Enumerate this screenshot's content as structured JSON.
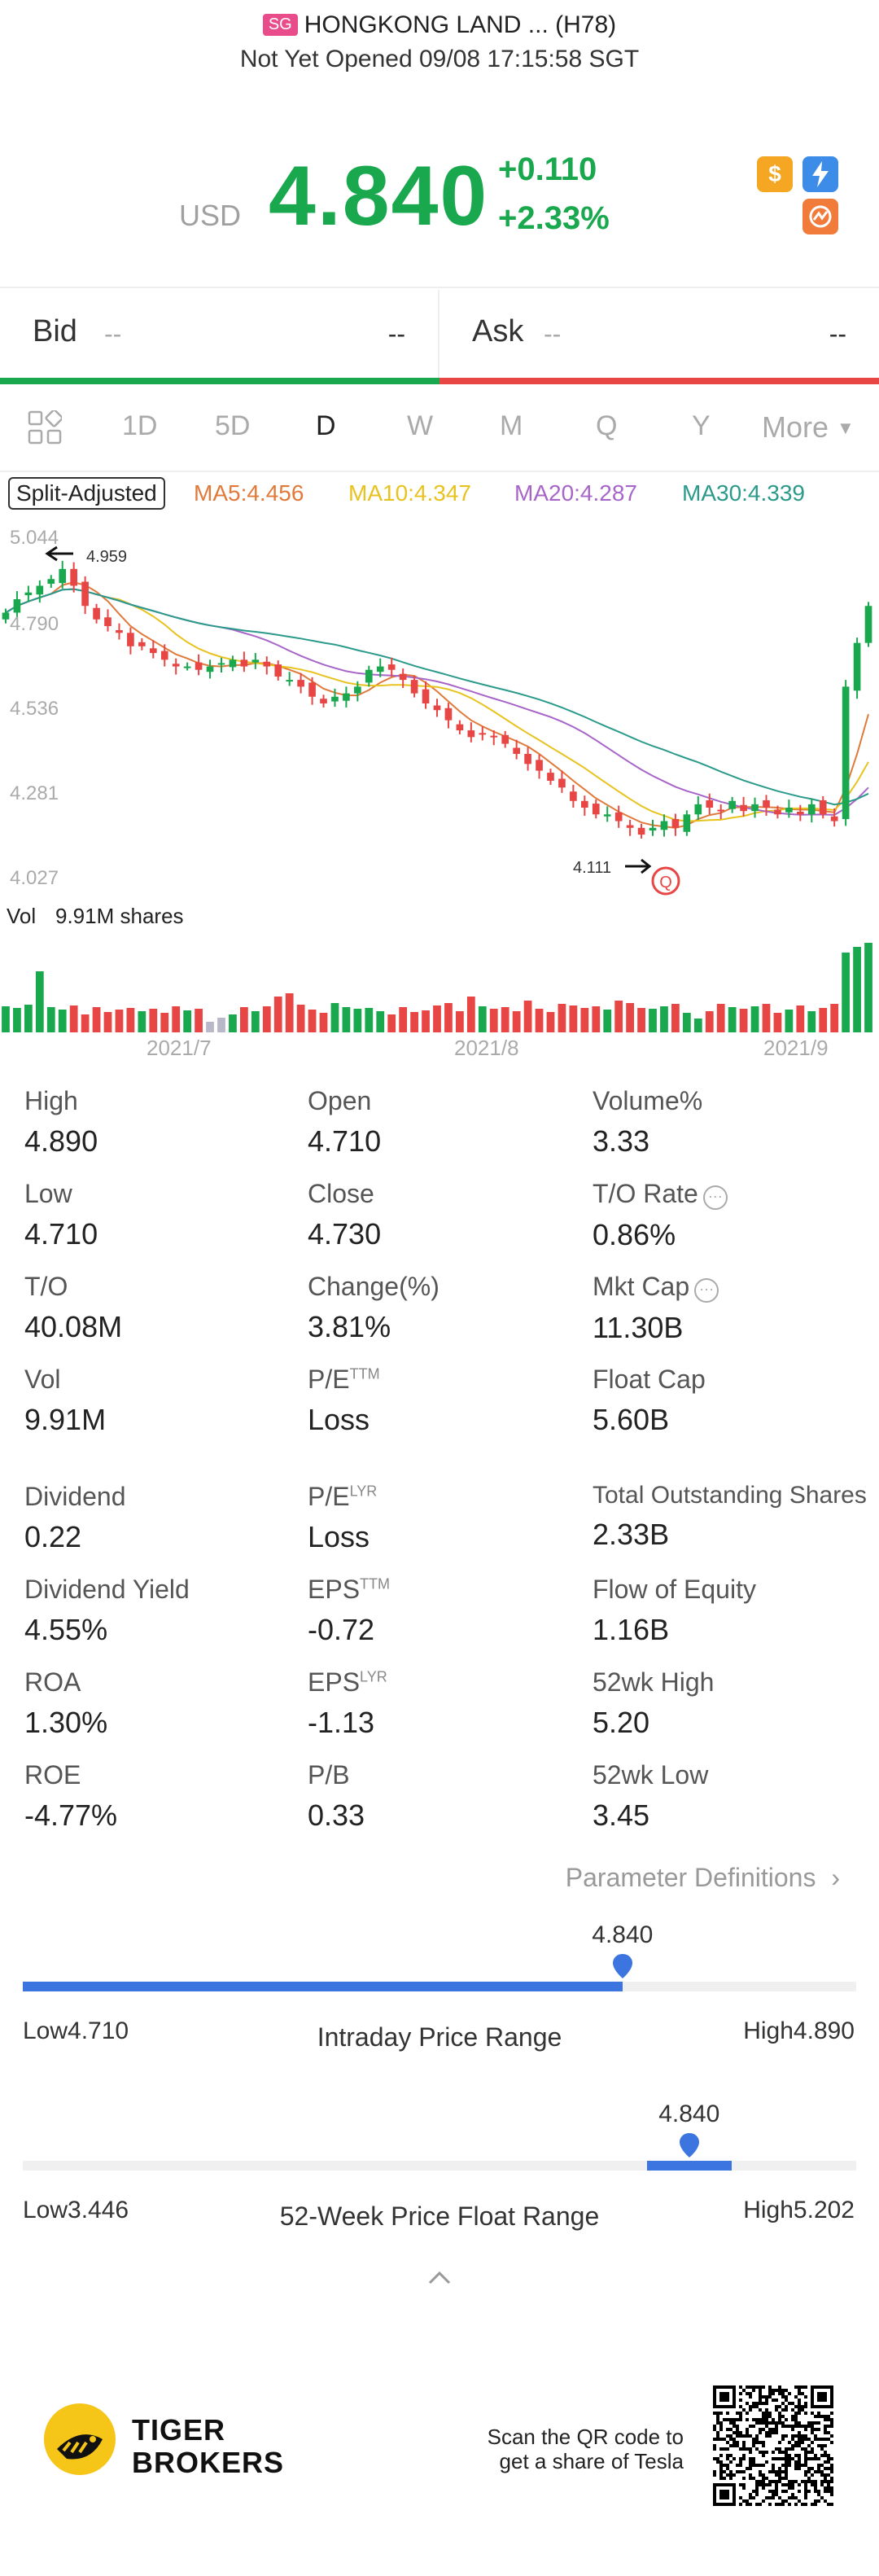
{
  "header": {
    "market_badge": "SG",
    "title": "HONGKONG LAND ... (H78)",
    "status": "Not Yet Opened 09/08 17:15:58 SGT"
  },
  "quote": {
    "currency": "USD",
    "price": "4.840",
    "change": "+0.110",
    "change_pct": "+2.33%",
    "color_up": "#1aa84f",
    "icons": [
      "dollar-icon",
      "flash-order-icon",
      "options-icon"
    ]
  },
  "bidask": {
    "bid_label": "Bid",
    "bid_price": "--",
    "bid_size": "--",
    "ask_label": "Ask",
    "ask_price": "--",
    "ask_size": "--"
  },
  "tabs": {
    "items": [
      "1D",
      "5D",
      "D",
      "W",
      "M",
      "Q",
      "Y"
    ],
    "active": "D",
    "more": "More"
  },
  "ma": {
    "split": "Split-Adjusted",
    "ma5": "MA5:4.456",
    "ma10": "MA10:4.347",
    "ma20": "MA20:4.287",
    "ma30": "MA30:4.339",
    "colors": {
      "ma5": "#e07a3a",
      "ma10": "#e8c21e",
      "ma20": "#a865c9",
      "ma30": "#2a9a8a"
    }
  },
  "chart_data": {
    "type": "candlestick",
    "y_ticks": [
      "5.044",
      "4.790",
      "4.536",
      "4.281",
      "4.027"
    ],
    "ylim": [
      4.027,
      5.044
    ],
    "annotations": {
      "high_mark": "4.959",
      "low_mark": "4.111",
      "low_badge": "Q"
    },
    "volume_label": "Vol",
    "volume_value": "9.91M shares",
    "x_ticks": [
      "2021/7",
      "2021/8",
      "2021/9"
    ],
    "closes": [
      4.82,
      4.86,
      4.88,
      4.9,
      4.92,
      4.95,
      4.9,
      4.84,
      4.8,
      4.78,
      4.76,
      4.72,
      4.72,
      4.7,
      4.68,
      4.66,
      4.66,
      4.65,
      4.66,
      4.67,
      4.68,
      4.66,
      4.68,
      4.66,
      4.63,
      4.62,
      4.6,
      4.57,
      4.55,
      4.57,
      4.58,
      4.6,
      4.65,
      4.66,
      4.65,
      4.62,
      4.58,
      4.55,
      4.53,
      4.5,
      4.47,
      4.45,
      4.46,
      4.45,
      4.43,
      4.4,
      4.37,
      4.35,
      4.32,
      4.3,
      4.26,
      4.24,
      4.22,
      4.22,
      4.2,
      4.18,
      4.16,
      4.18,
      4.2,
      4.18,
      4.22,
      4.25,
      4.24,
      4.23,
      4.26,
      4.23,
      4.25,
      4.24,
      4.22,
      4.24,
      4.22,
      4.25,
      4.22,
      4.2,
      4.6,
      4.73,
      4.84
    ],
    "volumes": [
      3.2,
      3.0,
      3.4,
      7.5,
      3.1,
      2.8,
      3.3,
      2.2,
      3.1,
      2.5,
      2.8,
      3.0,
      2.6,
      2.9,
      2.4,
      3.2,
      2.7,
      2.9,
      1.3,
      1.8,
      2.2,
      3.1,
      2.6,
      3.2,
      4.4,
      4.8,
      3.4,
      2.8,
      2.4,
      3.6,
      3.1,
      2.9,
      3.0,
      2.6,
      2.2,
      3.1,
      2.5,
      2.7,
      3.3,
      3.6,
      2.6,
      4.4,
      3.2,
      2.9,
      3.1,
      2.6,
      3.9,
      2.9,
      2.5,
      3.5,
      3.3,
      3.0,
      3.2,
      2.8,
      3.9,
      3.6,
      3.0,
      2.9,
      3.2,
      3.5,
      2.4,
      1.7,
      2.6,
      3.5,
      3.1,
      2.9,
      3.2,
      3.5,
      2.4,
      2.8,
      3.3,
      2.6,
      3.0,
      3.5,
      9.8,
      10.5,
      11.0
    ]
  },
  "stats": {
    "high_k": "High",
    "high_v": "4.890",
    "open_k": "Open",
    "open_v": "4.710",
    "volpct_k": "Volume%",
    "volpct_v": "3.33",
    "low_k": "Low",
    "low_v": "4.710",
    "close_k": "Close",
    "close_v": "4.730",
    "torate_k": "T/O Rate",
    "torate_v": "0.86%",
    "to_k": "T/O",
    "to_v": "40.08M",
    "chg_k": "Change(%)",
    "chg_v": "3.81%",
    "mktcap_k": "Mkt Cap",
    "mktcap_v": "11.30B",
    "vol_k": "Vol",
    "vol_v": "9.91M",
    "pettm_k": "P/E",
    "pettm_sup": "TTM",
    "pettm_v": "Loss",
    "floatcap_k": "Float Cap",
    "floatcap_v": "5.60B",
    "div_k": "Dividend",
    "div_v": "0.22",
    "pelyr_k": "P/E",
    "pelyr_sup": "LYR",
    "pelyr_v": "Loss",
    "tos_k": "Total Outstanding Shares",
    "tos_v": "2.33B",
    "dy_k": "Dividend Yield",
    "dy_v": "4.55%",
    "epsttm_k": "EPS",
    "epsttm_sup": "TTM",
    "epsttm_v": "-0.72",
    "foe_k": "Flow of Equity",
    "foe_v": "1.16B",
    "roa_k": "ROA",
    "roa_v": "1.30%",
    "epslyr_k": "EPS",
    "epslyr_sup": "LYR",
    "epslyr_v": "-1.13",
    "h52_k": "52wk High",
    "h52_v": "5.20",
    "roe_k": "ROE",
    "roe_v": "-4.77%",
    "pb_k": "P/B",
    "pb_v": "0.33",
    "l52_k": "52wk Low",
    "l52_v": "3.45",
    "param_def": "Parameter Definitions"
  },
  "intraday_range": {
    "current": "4.840",
    "low": "Low4.710",
    "high": "High4.890",
    "title": "Intraday Price Range",
    "position": 0.72
  },
  "week52_range": {
    "current": "4.840",
    "low": "Low3.446",
    "high": "High5.202",
    "title": "52-Week Price Float Range",
    "position": 0.8
  },
  "footer": {
    "brand_line1": "TIGER",
    "brand_line2": "BROKERS",
    "scan_line1": "Scan the QR code to",
    "scan_line2": "get a share of Tesla"
  }
}
